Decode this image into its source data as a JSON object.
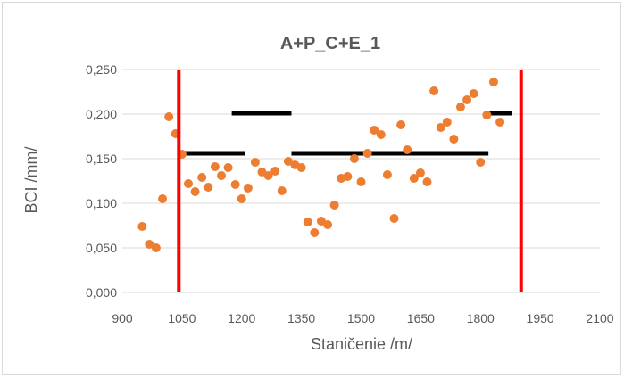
{
  "chart_data": {
    "type": "scatter",
    "title": "A+P_C+E_1",
    "xlabel": "Staničenie /m/",
    "ylabel": "BCI /mm/",
    "xlim": [
      900,
      2100
    ],
    "ylim": [
      0,
      0.25
    ],
    "x_ticks": [
      900,
      1050,
      1200,
      1350,
      1500,
      1650,
      1800,
      1950,
      2100
    ],
    "x_tick_labels": [
      "900",
      "1050",
      "1200",
      "1350",
      "1500",
      "1650",
      "1800",
      "1950",
      "2100"
    ],
    "y_ticks": [
      0,
      0.05,
      0.1,
      0.15,
      0.2,
      0.25
    ],
    "y_tick_labels": [
      "0,000",
      "0,050",
      "0,100",
      "0,150",
      "0,200",
      "0,250"
    ],
    "grid": "horizontal",
    "legend": "none",
    "colors": {
      "points": "#ed7d31",
      "vertical_lines": "#ff0000",
      "segments": "#000000",
      "grid": "#d9d9d9",
      "text": "#595959"
    },
    "points": [
      {
        "x": 950,
        "y": 0.074
      },
      {
        "x": 968,
        "y": 0.054
      },
      {
        "x": 985,
        "y": 0.05
      },
      {
        "x": 1001,
        "y": 0.105
      },
      {
        "x": 1017,
        "y": 0.197
      },
      {
        "x": 1034,
        "y": 0.178
      },
      {
        "x": 1050,
        "y": 0.155
      },
      {
        "x": 1066,
        "y": 0.122
      },
      {
        "x": 1083,
        "y": 0.113
      },
      {
        "x": 1100,
        "y": 0.129
      },
      {
        "x": 1116,
        "y": 0.118
      },
      {
        "x": 1133,
        "y": 0.141
      },
      {
        "x": 1149,
        "y": 0.131
      },
      {
        "x": 1166,
        "y": 0.14
      },
      {
        "x": 1184,
        "y": 0.121
      },
      {
        "x": 1200,
        "y": 0.105
      },
      {
        "x": 1216,
        "y": 0.117
      },
      {
        "x": 1234,
        "y": 0.146
      },
      {
        "x": 1251,
        "y": 0.135
      },
      {
        "x": 1267,
        "y": 0.131
      },
      {
        "x": 1284,
        "y": 0.136
      },
      {
        "x": 1301,
        "y": 0.114
      },
      {
        "x": 1317,
        "y": 0.147
      },
      {
        "x": 1334,
        "y": 0.143
      },
      {
        "x": 1350,
        "y": 0.14
      },
      {
        "x": 1366,
        "y": 0.079
      },
      {
        "x": 1383,
        "y": 0.067
      },
      {
        "x": 1400,
        "y": 0.08
      },
      {
        "x": 1416,
        "y": 0.076
      },
      {
        "x": 1433,
        "y": 0.098
      },
      {
        "x": 1450,
        "y": 0.128
      },
      {
        "x": 1466,
        "y": 0.13
      },
      {
        "x": 1483,
        "y": 0.15
      },
      {
        "x": 1500,
        "y": 0.124
      },
      {
        "x": 1516,
        "y": 0.156
      },
      {
        "x": 1533,
        "y": 0.182
      },
      {
        "x": 1550,
        "y": 0.177
      },
      {
        "x": 1566,
        "y": 0.132
      },
      {
        "x": 1583,
        "y": 0.083
      },
      {
        "x": 1600,
        "y": 0.188
      },
      {
        "x": 1616,
        "y": 0.16
      },
      {
        "x": 1633,
        "y": 0.128
      },
      {
        "x": 1649,
        "y": 0.134
      },
      {
        "x": 1666,
        "y": 0.124
      },
      {
        "x": 1683,
        "y": 0.226
      },
      {
        "x": 1700,
        "y": 0.185
      },
      {
        "x": 1716,
        "y": 0.191
      },
      {
        "x": 1733,
        "y": 0.172
      },
      {
        "x": 1750,
        "y": 0.208
      },
      {
        "x": 1766,
        "y": 0.216
      },
      {
        "x": 1783,
        "y": 0.223
      },
      {
        "x": 1800,
        "y": 0.146
      },
      {
        "x": 1816,
        "y": 0.199
      },
      {
        "x": 1833,
        "y": 0.236
      },
      {
        "x": 1849,
        "y": 0.191
      }
    ],
    "vertical_lines": [
      1042,
      1902
    ],
    "segments": [
      {
        "x1": 1042,
        "x2": 1208,
        "y": 0.156
      },
      {
        "x1": 1175,
        "x2": 1325,
        "y": 0.201
      },
      {
        "x1": 1325,
        "x2": 1820,
        "y": 0.156
      },
      {
        "x1": 1820,
        "x2": 1880,
        "y": 0.201
      }
    ]
  }
}
